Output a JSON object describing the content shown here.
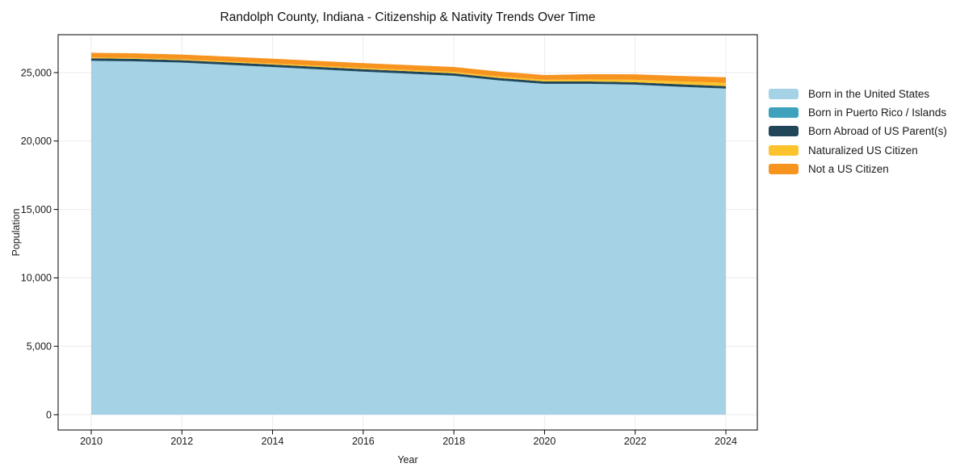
{
  "figure": {
    "title": "Randolph County, Indiana - Citizenship & Nativity Trends Over Time",
    "xlabel": "Year",
    "ylabel": "Population"
  },
  "colors": {
    "background": "#ffffff",
    "grid": "#ebebeb",
    "axis": "#000000",
    "text": "#1a1a1a"
  },
  "legend": {
    "position": "outside-right",
    "items": [
      {
        "label": "Born in the United States",
        "color": "#a6d2e6"
      },
      {
        "label": "Born in Puerto Rico / Islands",
        "color": "#3fa2bd"
      },
      {
        "label": "Born Abroad of US Parent(s)",
        "color": "#21465a"
      },
      {
        "label": "Naturalized US Citizen",
        "color": "#fcc32d"
      },
      {
        "label": "Not a US Citizen",
        "color": "#f79420"
      }
    ]
  },
  "chart_data": {
    "type": "area",
    "stacked": true,
    "title": "Randolph County, Indiana - Citizenship & Nativity Trends Over Time",
    "xlabel": "Year",
    "ylabel": "Population",
    "grid": true,
    "legend_position": "outside right",
    "x": [
      2010,
      2011,
      2012,
      2013,
      2014,
      2015,
      2016,
      2017,
      2018,
      2019,
      2020,
      2021,
      2022,
      2023,
      2024
    ],
    "series": [
      {
        "name": "Born in the United States",
        "color": "#a6d2e6",
        "values": [
          25855,
          25810,
          25720,
          25560,
          25400,
          25230,
          25060,
          24910,
          24760,
          24420,
          24170,
          24170,
          24110,
          23950,
          23820
        ]
      },
      {
        "name": "Born in Puerto Rico / Islands",
        "color": "#3fa2bd",
        "values": [
          15,
          15,
          15,
          15,
          15,
          15,
          15,
          15,
          15,
          15,
          15,
          15,
          15,
          20,
          20
        ]
      },
      {
        "name": "Born Abroad of US Parent(s)",
        "color": "#21465a",
        "values": [
          180,
          180,
          175,
          175,
          175,
          175,
          175,
          175,
          170,
          170,
          170,
          170,
          170,
          175,
          175
        ]
      },
      {
        "name": "Naturalized US Citizen",
        "color": "#fcc32d",
        "values": [
          60,
          65,
          70,
          75,
          80,
          85,
          90,
          100,
          110,
          115,
          120,
          150,
          180,
          210,
          235
        ]
      },
      {
        "name": "Not a US Citizen",
        "color": "#f79420",
        "values": [
          340,
          335,
          340,
          345,
          350,
          350,
          350,
          350,
          355,
          355,
          350,
          380,
          400,
          405,
          410
        ]
      }
    ],
    "x_ticks": [
      2010,
      2012,
      2014,
      2016,
      2018,
      2020,
      2022,
      2024
    ],
    "x_tick_labels": [
      "2010",
      "2012",
      "2014",
      "2016",
      "2018",
      "2020",
      "2022",
      "2024"
    ],
    "y_ticks": [
      0,
      5000,
      10000,
      15000,
      20000,
      25000
    ],
    "y_tick_labels": [
      "0",
      "5,000",
      "10,000",
      "15,000",
      "20,000",
      "25,000"
    ],
    "xlim": [
      2009.27,
      2024.73
    ],
    "ylim": [
      -1120,
      27775
    ]
  }
}
